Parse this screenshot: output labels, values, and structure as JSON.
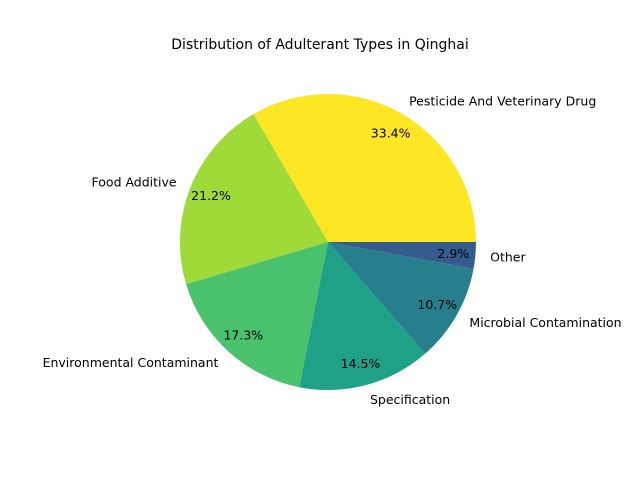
{
  "chart_data": {
    "type": "pie",
    "title": "Distribution of Adulterant Types in Qinghai",
    "categories": [
      "Pesticide And Veterinary Drug",
      "Food Additive",
      "Environmental Contaminant",
      "Specification",
      "Microbial Contamination",
      "Other"
    ],
    "values": [
      33.4,
      21.2,
      17.3,
      14.5,
      10.7,
      2.9
    ],
    "value_labels": [
      "33.4%",
      "21.2%",
      "17.3%",
      "14.5%",
      "10.7%",
      "2.9%"
    ],
    "colors": [
      "#fde725",
      "#a0da39",
      "#4ac16d",
      "#1fa187",
      "#277f8e",
      "#365c8d"
    ],
    "start_angle_deg": 0,
    "direction": "counterclockwise",
    "legend": "none"
  }
}
